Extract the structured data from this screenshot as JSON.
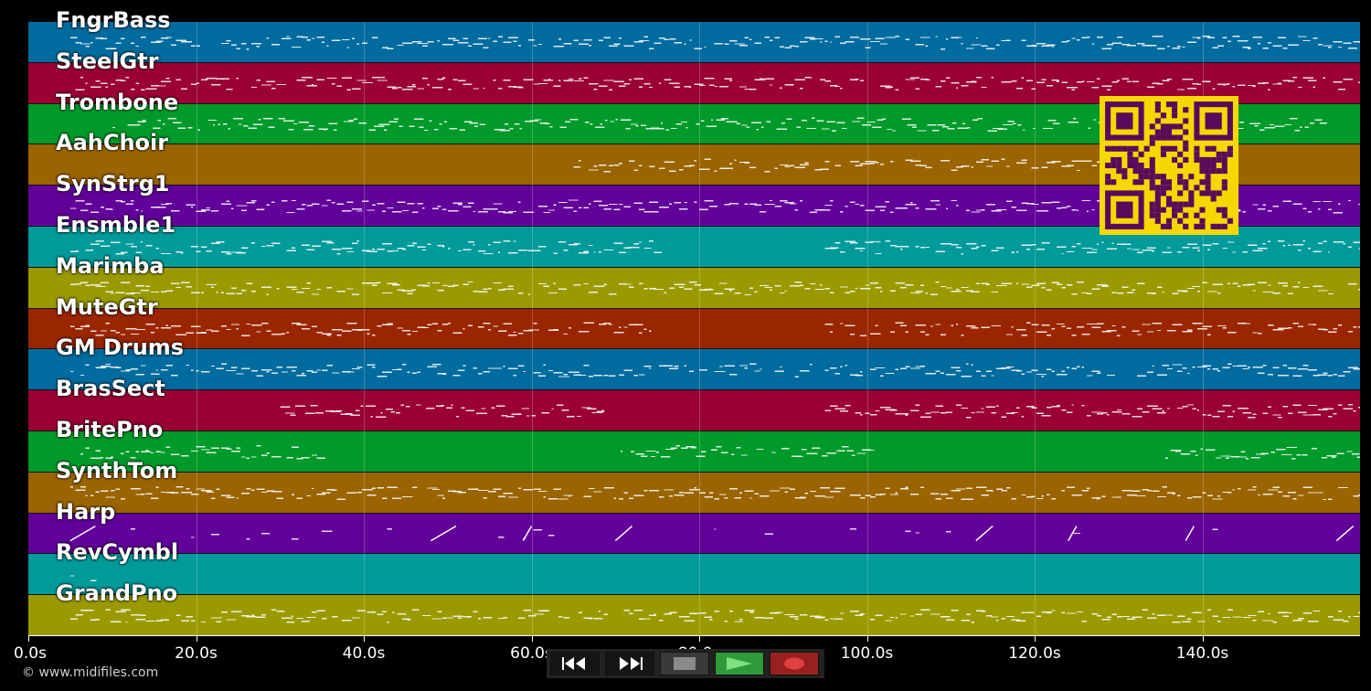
{
  "tracks": [
    {
      "name": "FngrBass",
      "color": "#006b9e"
    },
    {
      "name": "SteelGtr",
      "color": "#9a0035"
    },
    {
      "name": "Trombone",
      "color": "#009a2b"
    },
    {
      "name": "AahChoir",
      "color": "#9a6400"
    },
    {
      "name": "SynStrg1",
      "color": "#62009a"
    },
    {
      "name": "Ensmble1",
      "color": "#009a9a"
    },
    {
      "name": "Marimba",
      "color": "#9a9a00"
    },
    {
      "name": "MuteGtr",
      "color": "#9a2600"
    },
    {
      "name": "GM Drums",
      "color": "#006b9e"
    },
    {
      "name": "BrasSect",
      "color": "#9a0035"
    },
    {
      "name": "BritePno",
      "color": "#009a2b"
    },
    {
      "name": "SynthTom",
      "color": "#9a6400"
    },
    {
      "name": "Harp",
      "color": "#62009a"
    },
    {
      "name": "RevCymbl",
      "color": "#009a9a"
    },
    {
      "name": "GrandPno",
      "color": "#9a9a00"
    }
  ],
  "timeline": {
    "ticks": [
      {
        "t": 0,
        "label": "0.0s"
      },
      {
        "t": 20,
        "label": "20.0s"
      },
      {
        "t": 40,
        "label": "40.0s"
      },
      {
        "t": 60,
        "label": "60.0s"
      },
      {
        "t": 80,
        "label": "80.0s"
      },
      {
        "t": 100,
        "label": "100.0s"
      },
      {
        "t": 120,
        "label": "120.0s"
      },
      {
        "t": 140,
        "label": "140.0s"
      }
    ],
    "duration_s": 158.8
  },
  "transport": {
    "rewind_icon": "rewind-icon",
    "forward_icon": "fast-forward-icon",
    "stop_icon": "stop-icon",
    "play_icon": "play-icon",
    "record_icon": "record-icon",
    "play_color": "#2e9a3a",
    "record_color": "#9a2020"
  },
  "qr_colors": {
    "fg": "#5a0a5a",
    "bg": "#f5d800"
  },
  "footer": {
    "copyright": "© www.midifiles.com"
  }
}
